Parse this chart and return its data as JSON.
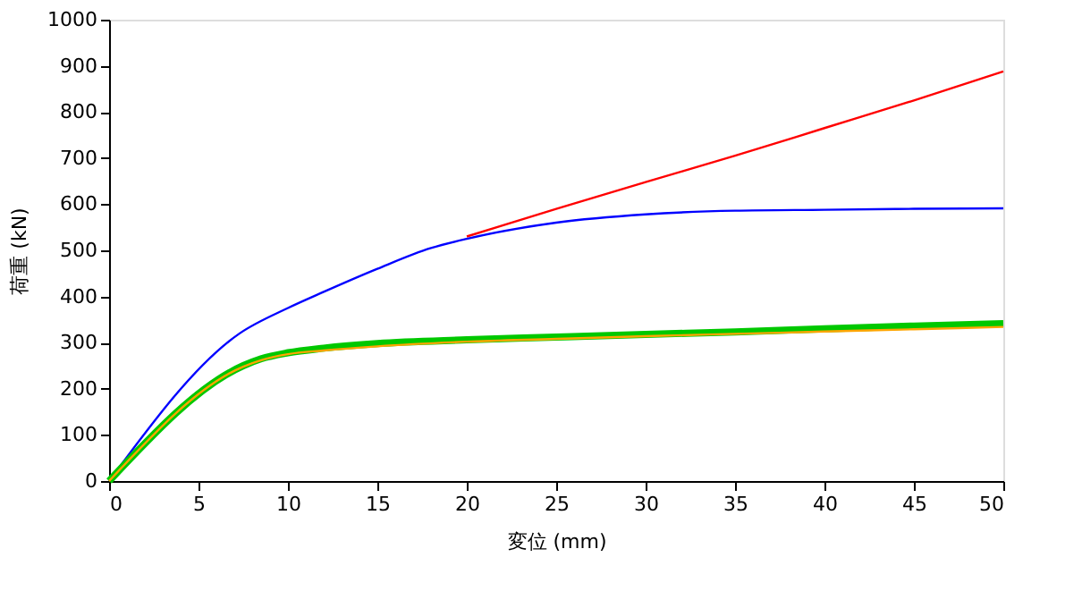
{
  "chart_data": {
    "type": "line",
    "xlabel": "変位 (mm)",
    "ylabel": "荷重 (kN)",
    "xlim": [
      0,
      50
    ],
    "ylim": [
      0,
      1000
    ],
    "xticks": [
      0,
      5,
      10,
      15,
      20,
      25,
      30,
      35,
      40,
      45,
      50
    ],
    "yticks": [
      0,
      100,
      200,
      300,
      400,
      500,
      600,
      700,
      800,
      900,
      1000
    ],
    "grid": false,
    "legend": false,
    "marker": "none",
    "line_style": "solid",
    "series": [
      {
        "color": "#ff0000",
        "x": [
          20,
          25,
          30,
          35,
          40,
          45,
          50
        ],
        "values": [
          530,
          590,
          648,
          705,
          765,
          825,
          888
        ]
      },
      {
        "color": "#0000ff",
        "x": [
          0,
          7.3,
          10,
          12,
          15,
          18,
          20,
          25,
          30,
          35,
          40,
          45,
          50
        ],
        "values": [
          0,
          320,
          375,
          410,
          460,
          505,
          525,
          560,
          578,
          586,
          588,
          590,
          591
        ]
      },
      {
        "color": "#00c800",
        "x": [
          0,
          7.5,
          8.5,
          10,
          12,
          15,
          20,
          25,
          30,
          35,
          40,
          45,
          50
        ],
        "values": [
          0,
          250,
          265,
          278,
          288,
          298,
          306,
          312,
          318,
          323,
          330,
          336,
          341
        ]
      },
      {
        "color": "#ffa500",
        "x": [
          0,
          7.5,
          8.5,
          10,
          12,
          15,
          20,
          25,
          30,
          35,
          40,
          45,
          50
        ],
        "values": [
          0,
          248,
          262,
          275,
          283,
          292,
          302,
          308,
          314,
          319,
          324,
          329,
          334
        ]
      }
    ]
  }
}
